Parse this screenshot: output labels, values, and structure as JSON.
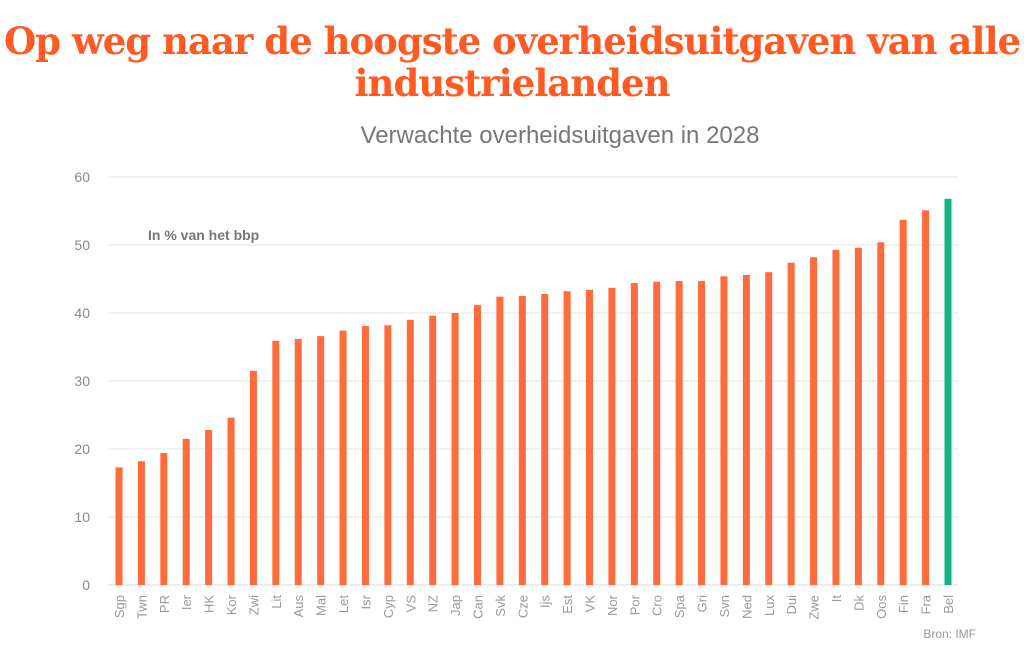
{
  "chart_data": {
    "type": "bar",
    "title": "Op weg naar de hoogste overheidsuitgaven van alle industrielanden",
    "subtitle": "Verwachte overheidsuitgaven in 2028",
    "annotation": "In % van het bbp",
    "source": "Bron: IMF",
    "xlabel": "",
    "ylabel": "",
    "ylim": [
      0,
      60
    ],
    "yticks": [
      0,
      10,
      20,
      30,
      40,
      50,
      60
    ],
    "grid": true,
    "categories": [
      "Sgp",
      "Twn",
      "PR",
      "Ier",
      "HK",
      "Kor",
      "Zwi",
      "Lit",
      "Aus",
      "Mal",
      "Let",
      "Isr",
      "Cyp",
      "VS",
      "NZ",
      "Jap",
      "Can",
      "Svk",
      "Cze",
      "Ijs",
      "Est",
      "VK",
      "Nor",
      "Por",
      "Cro",
      "Spa",
      "Gri",
      "Svn",
      "Ned",
      "Lux",
      "Dui",
      "Zwe",
      "It",
      "Dk",
      "Oos",
      "Fin",
      "Fra",
      "Bel"
    ],
    "values": [
      17.3,
      18.2,
      19.4,
      21.5,
      22.8,
      24.6,
      31.5,
      35.9,
      36.2,
      36.6,
      37.4,
      38.1,
      38.2,
      39.0,
      39.6,
      40.0,
      41.2,
      42.4,
      42.5,
      42.8,
      43.2,
      43.4,
      43.7,
      44.4,
      44.6,
      44.7,
      44.7,
      45.4,
      45.6,
      46.0,
      47.4,
      48.2,
      49.3,
      49.6,
      50.4,
      53.7,
      55.1,
      56.8
    ],
    "highlight": "Bel",
    "colors": {
      "bar": "#ff6b3a",
      "highlight": "#12b487",
      "title": "#ff5a24",
      "grid": "#e6e6e6"
    }
  }
}
